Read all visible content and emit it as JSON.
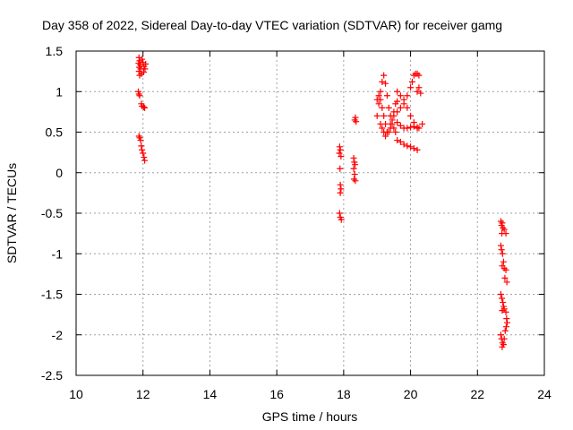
{
  "chart_data": {
    "type": "scatter",
    "title": "Day 358 of 2022, Sidereal Day-to-day VTEC variation (SDTVAR) for receiver gamg",
    "xlabel": "GPS time / hours",
    "ylabel": "SDTVAR / TECUs",
    "xlim": [
      10,
      24
    ],
    "ylim": [
      -2.5,
      1.5
    ],
    "xticks": [
      10,
      12,
      14,
      16,
      18,
      20,
      22,
      24
    ],
    "xtick_labels": [
      "10",
      "12",
      "14",
      "16",
      "18",
      "20",
      "22",
      "24"
    ],
    "yticks": [
      -2.5,
      -2,
      -1.5,
      -1,
      -0.5,
      0,
      0.5,
      1,
      1.5
    ],
    "ytick_labels": [
      "-2.5",
      "-2",
      "-1.5",
      "-1",
      "-0.5",
      "0",
      "0.5",
      "1",
      "1.5"
    ],
    "grid": true,
    "marker": "+",
    "marker_color": "#ff0000",
    "series": [
      {
        "name": "SDTVAR",
        "points": [
          [
            11.88,
            1.42
          ],
          [
            11.9,
            1.38
          ],
          [
            11.87,
            1.35
          ],
          [
            11.92,
            1.33
          ],
          [
            11.89,
            1.3
          ],
          [
            11.93,
            1.28
          ],
          [
            11.88,
            1.25
          ],
          [
            11.95,
            1.22
          ],
          [
            11.9,
            1.2
          ],
          [
            12.0,
            1.36
          ],
          [
            12.03,
            1.31
          ],
          [
            12.06,
            1.28
          ],
          [
            12.02,
            1.24
          ],
          [
            12.08,
            1.34
          ],
          [
            11.97,
            1.4
          ],
          [
            11.86,
            1.0
          ],
          [
            11.88,
            0.97
          ],
          [
            11.9,
            0.95
          ],
          [
            11.95,
            0.85
          ],
          [
            11.97,
            0.82
          ],
          [
            12.02,
            0.81
          ],
          [
            12.05,
            0.8
          ],
          [
            11.88,
            0.45
          ],
          [
            11.9,
            0.43
          ],
          [
            11.93,
            0.4
          ],
          [
            11.95,
            0.33
          ],
          [
            11.97,
            0.28
          ],
          [
            12.0,
            0.24
          ],
          [
            12.03,
            0.19
          ],
          [
            12.05,
            0.15
          ],
          [
            17.88,
            0.32
          ],
          [
            17.9,
            0.28
          ],
          [
            17.87,
            0.24
          ],
          [
            17.92,
            0.2
          ],
          [
            17.89,
            0.05
          ],
          [
            17.9,
            -0.15
          ],
          [
            17.92,
            -0.2
          ],
          [
            17.9,
            -0.25
          ],
          [
            17.88,
            -0.5
          ],
          [
            17.9,
            -0.55
          ],
          [
            17.93,
            -0.58
          ],
          [
            18.3,
            0.18
          ],
          [
            18.32,
            0.13
          ],
          [
            18.34,
            0.1
          ],
          [
            18.3,
            0.05
          ],
          [
            18.33,
            -0.02
          ],
          [
            18.31,
            -0.08
          ],
          [
            18.35,
            -0.1
          ],
          [
            18.33,
            0.65
          ],
          [
            18.35,
            0.68
          ],
          [
            18.37,
            0.63
          ],
          [
            19.0,
            0.7
          ],
          [
            19.05,
            0.85
          ],
          [
            19.1,
            1.0
          ],
          [
            19.15,
            1.12
          ],
          [
            19.2,
            1.2
          ],
          [
            19.25,
            1.1
          ],
          [
            19.3,
            0.95
          ],
          [
            19.35,
            0.8
          ],
          [
            19.4,
            0.7
          ],
          [
            19.45,
            0.6
          ],
          [
            19.5,
            0.55
          ],
          [
            19.55,
            0.5
          ],
          [
            19.0,
            0.9
          ],
          [
            19.05,
            0.95
          ],
          [
            19.1,
            0.9
          ],
          [
            19.15,
            0.8
          ],
          [
            19.2,
            0.7
          ],
          [
            19.25,
            0.6
          ],
          [
            19.3,
            0.5
          ],
          [
            19.35,
            0.5
          ],
          [
            19.4,
            0.55
          ],
          [
            19.45,
            0.65
          ],
          [
            19.5,
            0.75
          ],
          [
            19.55,
            0.85
          ],
          [
            19.6,
            0.88
          ],
          [
            19.1,
            0.6
          ],
          [
            19.15,
            0.55
          ],
          [
            19.2,
            0.5
          ],
          [
            19.25,
            0.45
          ],
          [
            19.3,
            0.5
          ],
          [
            19.4,
            0.6
          ],
          [
            19.5,
            0.7
          ],
          [
            19.6,
            0.75
          ],
          [
            19.7,
            0.8
          ],
          [
            19.8,
            0.85
          ],
          [
            19.9,
            0.95
          ],
          [
            20.0,
            1.05
          ],
          [
            20.05,
            1.12
          ],
          [
            20.1,
            1.2
          ],
          [
            20.15,
            1.22
          ],
          [
            20.2,
            1.22
          ],
          [
            20.25,
            1.2
          ],
          [
            19.6,
            0.62
          ],
          [
            19.7,
            0.58
          ],
          [
            19.8,
            0.55
          ],
          [
            19.9,
            0.55
          ],
          [
            20.0,
            0.56
          ],
          [
            20.1,
            0.57
          ],
          [
            20.2,
            0.56
          ],
          [
            20.25,
            0.55
          ],
          [
            19.6,
            1.0
          ],
          [
            19.7,
            0.95
          ],
          [
            19.8,
            0.9
          ],
          [
            19.9,
            0.8
          ],
          [
            20.0,
            0.7
          ],
          [
            20.1,
            0.62
          ],
          [
            20.2,
            0.55
          ],
          [
            19.6,
            0.4
          ],
          [
            19.7,
            0.38
          ],
          [
            19.8,
            0.35
          ],
          [
            19.9,
            0.33
          ],
          [
            20.0,
            0.32
          ],
          [
            20.1,
            0.3
          ],
          [
            20.2,
            0.28
          ],
          [
            20.2,
            1.0
          ],
          [
            20.25,
            1.05
          ],
          [
            20.3,
            0.98
          ],
          [
            20.35,
            0.6
          ],
          [
            22.7,
            -0.6
          ],
          [
            22.72,
            -0.65
          ],
          [
            22.74,
            -0.62
          ],
          [
            22.76,
            -0.68
          ],
          [
            22.73,
            -0.75
          ],
          [
            22.8,
            -0.7
          ],
          [
            22.85,
            -0.75
          ],
          [
            22.7,
            -0.9
          ],
          [
            22.72,
            -0.95
          ],
          [
            22.75,
            -1.0
          ],
          [
            22.78,
            -1.1
          ],
          [
            22.74,
            -1.15
          ],
          [
            22.8,
            -1.18
          ],
          [
            22.85,
            -1.2
          ],
          [
            22.82,
            -1.3
          ],
          [
            22.88,
            -1.35
          ],
          [
            22.7,
            -1.5
          ],
          [
            22.73,
            -1.55
          ],
          [
            22.76,
            -1.6
          ],
          [
            22.78,
            -1.65
          ],
          [
            22.74,
            -1.7
          ],
          [
            22.8,
            -1.68
          ],
          [
            22.85,
            -1.72
          ],
          [
            22.87,
            -1.8
          ],
          [
            22.7,
            -2.0
          ],
          [
            22.72,
            -2.05
          ],
          [
            22.75,
            -2.1
          ],
          [
            22.78,
            -2.12
          ],
          [
            22.74,
            -2.15
          ],
          [
            22.8,
            -2.05
          ],
          [
            22.83,
            -1.95
          ],
          [
            22.86,
            -1.9
          ],
          [
            22.89,
            -1.85
          ]
        ]
      }
    ]
  }
}
